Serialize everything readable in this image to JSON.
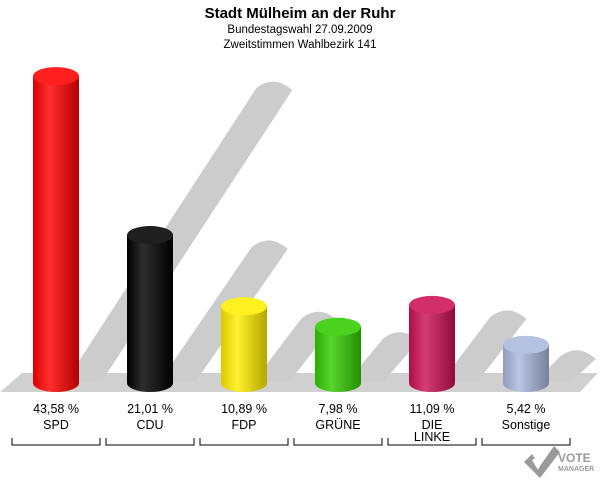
{
  "chart_data": {
    "type": "bar",
    "title": "Stadt Mülheim an der Ruhr",
    "subtitle": "Bundestagswahl 27.09.2009",
    "subtitle2": "Zweitstimmen Wahlbezirk 141",
    "categories": [
      "SPD",
      "CDU",
      "FDP",
      "GRÜNE",
      "DIE LINKE",
      "Sonstige"
    ],
    "category_lines": [
      [
        "SPD"
      ],
      [
        "CDU"
      ],
      [
        "FDP"
      ],
      [
        "GRÜNE"
      ],
      [
        "DIE",
        "LINKE"
      ],
      [
        "Sonstige"
      ]
    ],
    "values": [
      43.58,
      21.01,
      10.89,
      7.98,
      11.09,
      5.42
    ],
    "value_labels": [
      "43,58 %",
      "21,01 %",
      "10,89 %",
      "7,98 %",
      "11,09 %",
      "5,42 %"
    ],
    "ylim": [
      0,
      50
    ],
    "grid": false,
    "colors": [
      "#ff0000",
      "#000000",
      "#ffee00",
      "#33cc00",
      "#cc1155",
      "#aab8dd"
    ],
    "shadow_color": "#cccccc",
    "floor_color": "#d0d0d0"
  },
  "logo": {
    "word1": "VOTE",
    "word2": "MANAGER",
    "icon": "checkmark-icon"
  }
}
